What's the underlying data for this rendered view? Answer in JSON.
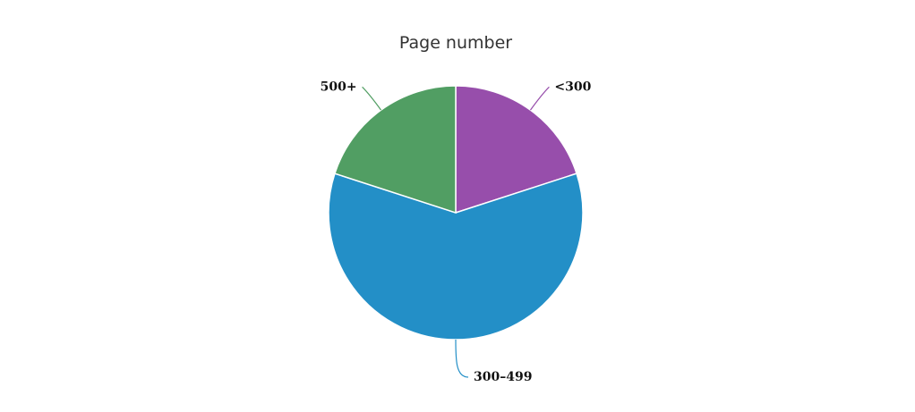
{
  "chart_data": {
    "type": "pie",
    "title": "Page number",
    "categories": [
      "<300",
      "300–499",
      "500+"
    ],
    "values": [
      20,
      60,
      20
    ],
    "colors": [
      "#974eab",
      "#238fc7",
      "#519e63"
    ]
  }
}
